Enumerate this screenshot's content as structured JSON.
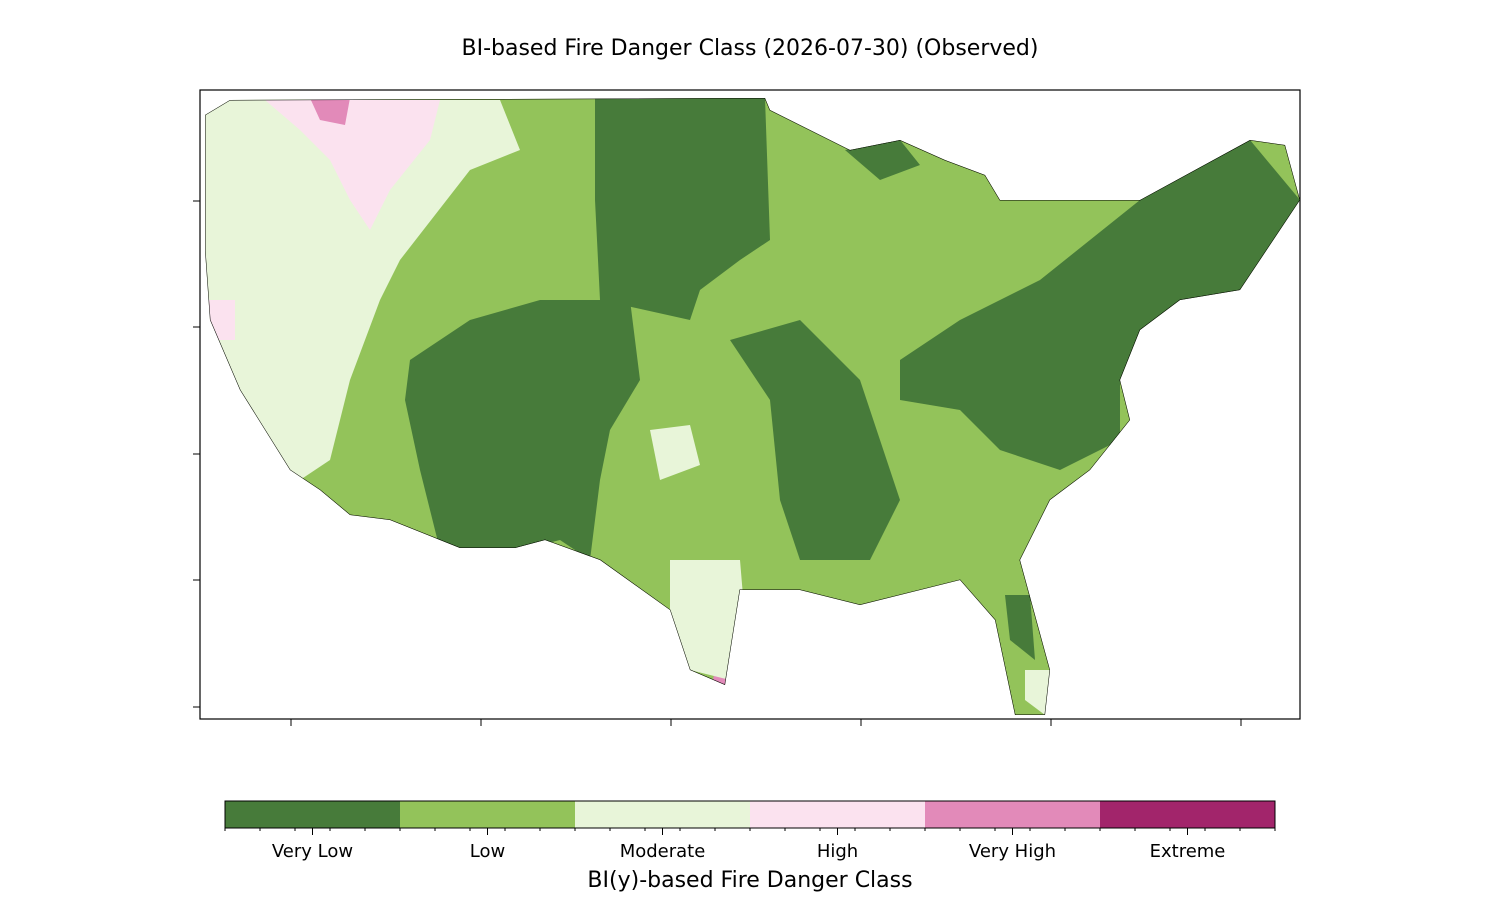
{
  "title": "BI-based Fire Danger Class (2026-07-30) (Observed)",
  "colorbar": {
    "label": "BI(y)-based Fire Danger Class",
    "classes": [
      {
        "name": "Very Low",
        "color": "#477b3a"
      },
      {
        "name": "Low",
        "color": "#93c35a"
      },
      {
        "name": "Moderate",
        "color": "#e8f5d9"
      },
      {
        "name": "High",
        "color": "#fbe2ef"
      },
      {
        "name": "Very High",
        "color": "#e28ab9"
      },
      {
        "name": "Extreme",
        "color": "#a2256b"
      }
    ]
  }
}
